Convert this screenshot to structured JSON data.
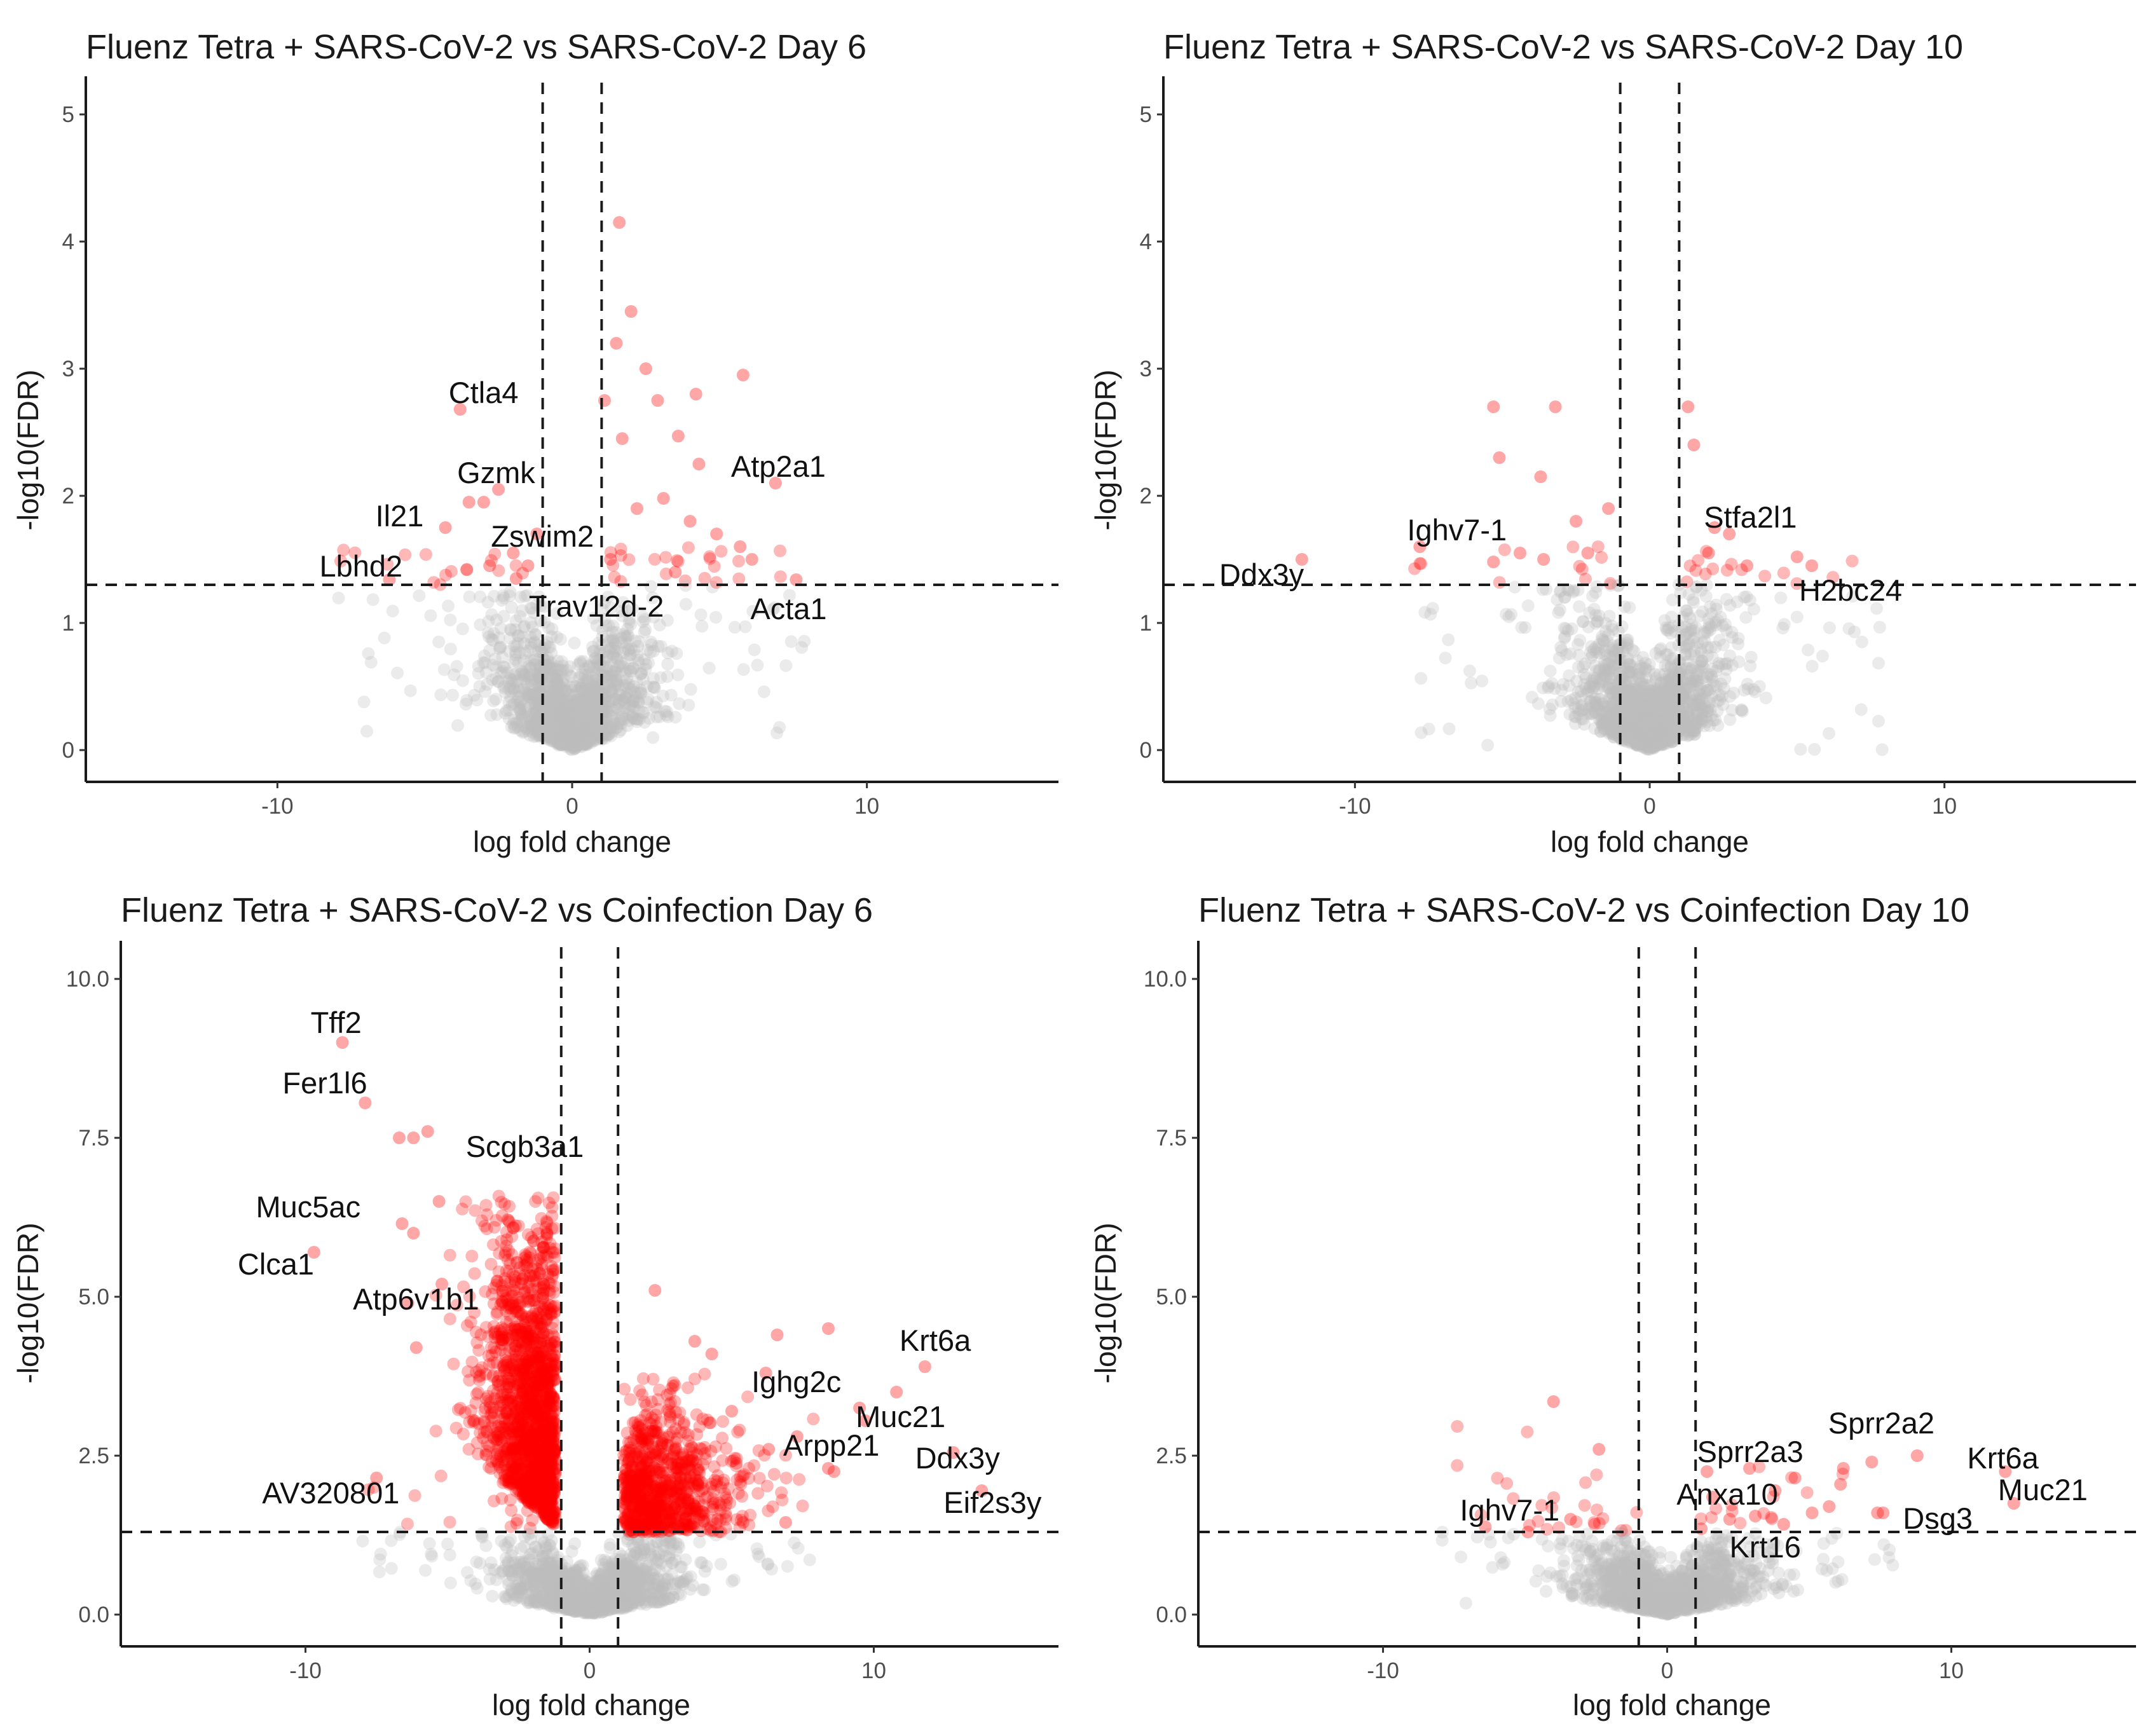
{
  "colors": {
    "significant": "#ff0000",
    "not_significant": "#bdbdbd",
    "threshold_line": "#1a1a1a"
  },
  "chart_data": [
    {
      "type": "scatter",
      "title": "Fluenz Tetra + SARS-CoV-2 vs SARS-CoV-2 Day 6",
      "xlabel": "log fold change",
      "ylabel": "-log10(FDR)",
      "xlim": [
        -16.5,
        16.5
      ],
      "ylim": [
        -0.25,
        5.25
      ],
      "x_ticks": [
        -10,
        0,
        10
      ],
      "y_ticks": [
        0,
        1,
        2,
        3,
        4,
        5
      ],
      "y_tick_labels": [
        "0",
        "1",
        "2",
        "3",
        "4",
        "5"
      ],
      "thresholds": {
        "logfc": [
          -1,
          1
        ],
        "neg_log10_fdr": 1.3
      },
      "grid": false,
      "labeled_genes": [
        {
          "gene": "Ctla4",
          "x": -3.8,
          "y": 2.68
        },
        {
          "gene": "Gzmk",
          "x": -2.5,
          "y": 2.05
        },
        {
          "gene": "Il21",
          "x": -4.3,
          "y": 1.75
        },
        {
          "gene": "Zswim2",
          "x": -2.0,
          "y": 1.55
        },
        {
          "gene": "Lbhd2",
          "x": -6.2,
          "y": 1.34
        },
        {
          "gene": "Trav12d-2",
          "x": -1.9,
          "y": 1.35
        },
        {
          "gene": "Atp2a1",
          "x": 6.9,
          "y": 2.1
        },
        {
          "gene": "Acta1",
          "x": 7.6,
          "y": 1.34
        }
      ],
      "highlighted_points": [
        {
          "x": 1.6,
          "y": 4.15
        },
        {
          "x": 2.0,
          "y": 3.45
        },
        {
          "x": 1.5,
          "y": 3.2
        },
        {
          "x": 2.5,
          "y": 3.0
        },
        {
          "x": 5.8,
          "y": 2.95
        },
        {
          "x": 4.2,
          "y": 2.8
        },
        {
          "x": 2.9,
          "y": 2.75
        },
        {
          "x": 1.1,
          "y": 2.75
        },
        {
          "x": 3.6,
          "y": 2.47
        },
        {
          "x": 4.3,
          "y": 2.25
        },
        {
          "x": 1.7,
          "y": 2.45
        },
        {
          "x": 3.1,
          "y": 1.98
        },
        {
          "x": 2.2,
          "y": 1.9
        },
        {
          "x": 4.0,
          "y": 1.8
        },
        {
          "x": 4.9,
          "y": 1.7
        },
        {
          "x": 5.7,
          "y": 1.6
        },
        {
          "x": 1.3,
          "y": 1.5
        },
        {
          "x": 3.5,
          "y": 1.4
        },
        {
          "x": 6.1,
          "y": 1.5
        },
        {
          "x": -1.2,
          "y": 1.7
        },
        {
          "x": -1.5,
          "y": 1.45
        },
        {
          "x": -2.8,
          "y": 1.45
        },
        {
          "x": -3.5,
          "y": 1.95
        },
        {
          "x": -3.0,
          "y": 1.95
        }
      ]
    },
    {
      "type": "scatter",
      "title": "Fluenz Tetra + SARS-CoV-2 vs SARS-CoV-2 Day 10",
      "xlabel": "log fold change",
      "ylabel": "-log10(FDR)",
      "xlim": [
        -16.5,
        16.5
      ],
      "ylim": [
        -0.25,
        5.25
      ],
      "x_ticks": [
        -10,
        0,
        10
      ],
      "y_ticks": [
        0,
        1,
        2,
        3,
        4,
        5
      ],
      "y_tick_labels": [
        "0",
        "1",
        "2",
        "3",
        "4",
        "5"
      ],
      "thresholds": {
        "logfc": [
          -1,
          1
        ],
        "neg_log10_fdr": 1.3
      },
      "grid": false,
      "labeled_genes": [
        {
          "gene": "Ighv7-1",
          "x": -7.8,
          "y": 1.6
        },
        {
          "gene": "Ddx3y",
          "x": -11.8,
          "y": 1.5
        },
        {
          "gene": "Stfa2l1",
          "x": 2.7,
          "y": 1.7
        },
        {
          "gene": "H2bc24",
          "x": 5.5,
          "y": 1.45
        }
      ],
      "highlighted_points": [
        {
          "x": -5.3,
          "y": 2.7
        },
        {
          "x": -3.2,
          "y": 2.7
        },
        {
          "x": -5.1,
          "y": 2.3
        },
        {
          "x": -3.7,
          "y": 2.15
        },
        {
          "x": -1.4,
          "y": 1.9
        },
        {
          "x": -2.5,
          "y": 1.8
        },
        {
          "x": -4.4,
          "y": 1.55
        },
        {
          "x": -5.3,
          "y": 1.48
        },
        {
          "x": -3.6,
          "y": 1.5
        },
        {
          "x": -2.1,
          "y": 1.55
        },
        {
          "x": 1.3,
          "y": 2.7
        },
        {
          "x": 1.5,
          "y": 2.4
        },
        {
          "x": 2.2,
          "y": 1.75
        },
        {
          "x": 3.3,
          "y": 1.45
        },
        {
          "x": 2.0,
          "y": 1.55
        },
        {
          "x": 5.0,
          "y": 1.52
        }
      ]
    },
    {
      "type": "scatter",
      "title": "Fluenz Tetra + SARS-CoV-2 vs Coinfection Day 6",
      "xlabel": "log fold change",
      "ylabel": "-log10(FDR)",
      "xlim": [
        -16.5,
        16.5
      ],
      "ylim": [
        -0.5,
        10.5
      ],
      "x_ticks": [
        -10,
        0,
        10
      ],
      "y_ticks": [
        0,
        2.5,
        5,
        7.5,
        10
      ],
      "y_tick_labels": [
        "0.0",
        "2.5",
        "5.0",
        "7.5",
        "10.0"
      ],
      "thresholds": {
        "logfc": [
          -1,
          1
        ],
        "neg_log10_fdr": 1.3
      },
      "grid": false,
      "labeled_genes": [
        {
          "gene": "Tff2",
          "x": -8.7,
          "y": 9.0
        },
        {
          "gene": "Fer1l6",
          "x": -7.9,
          "y": 8.05
        },
        {
          "gene": "Scgb3a1",
          "x": -5.7,
          "y": 7.6
        },
        {
          "gene": "Muc5ac",
          "x": -6.6,
          "y": 6.15
        },
        {
          "gene": "Clca1",
          "x": -9.7,
          "y": 5.7
        },
        {
          "gene": "Atp6v1b1",
          "x": -5.2,
          "y": 5.2
        },
        {
          "gene": "AV320801",
          "x": -7.5,
          "y": 2.15
        },
        {
          "gene": "Ighg2c",
          "x": 9.5,
          "y": 3.25
        },
        {
          "gene": "Muc21",
          "x": 9.7,
          "y": 3.05
        },
        {
          "gene": "Krt6a",
          "x": 11.8,
          "y": 3.9
        },
        {
          "gene": "Ddx3y",
          "x": 12.8,
          "y": 2.55
        },
        {
          "gene": "Arpp21",
          "x": 8.6,
          "y": 2.25
        },
        {
          "gene": "Eif2s3y",
          "x": 13.8,
          "y": 1.95
        }
      ],
      "highlighted_points": [
        {
          "x": -6.7,
          "y": 7.5
        },
        {
          "x": -6.2,
          "y": 7.5
        },
        {
          "x": -5.3,
          "y": 6.5
        },
        {
          "x": -6.2,
          "y": 6.0
        },
        {
          "x": -6.4,
          "y": 4.9
        },
        {
          "x": -6.1,
          "y": 4.2
        },
        {
          "x": 2.3,
          "y": 5.1
        },
        {
          "x": 3.7,
          "y": 4.3
        },
        {
          "x": 4.3,
          "y": 4.1
        },
        {
          "x": 6.6,
          "y": 4.4
        },
        {
          "x": 8.4,
          "y": 4.5
        },
        {
          "x": 10.8,
          "y": 3.5
        },
        {
          "x": 6.2,
          "y": 3.8
        },
        {
          "x": 5.0,
          "y": 3.2
        },
        {
          "x": 6.3,
          "y": 2.6
        },
        {
          "x": 7.3,
          "y": 2.8
        },
        {
          "x": 4.5,
          "y": 1.5
        },
        {
          "x": 6.9,
          "y": 1.45
        },
        {
          "x": 5.4,
          "y": 1.45
        },
        {
          "x": 8.4,
          "y": 2.3
        }
      ]
    },
    {
      "type": "scatter",
      "title": "Fluenz Tetra + SARS-CoV-2 vs Coinfection Day 10",
      "xlabel": "log fold change",
      "ylabel": "-log10(FDR)",
      "xlim": [
        -16.5,
        16.5
      ],
      "ylim": [
        -0.5,
        10.5
      ],
      "x_ticks": [
        -10,
        0,
        10
      ],
      "y_ticks": [
        0,
        2.5,
        5,
        7.5,
        10
      ],
      "y_tick_labels": [
        "0.0",
        "2.5",
        "5.0",
        "7.5",
        "10.0"
      ],
      "thresholds": {
        "logfc": [
          -1,
          1
        ],
        "neg_log10_fdr": 1.3
      },
      "grid": false,
      "labeled_genes": [
        {
          "gene": "Ighv7-1",
          "x": -6.4,
          "y": 1.38
        },
        {
          "gene": "Sprr2a2",
          "x": 8.8,
          "y": 2.5
        },
        {
          "gene": "Krt6a",
          "x": 11.9,
          "y": 2.25
        },
        {
          "gene": "Sprr2a3",
          "x": 6.2,
          "y": 2.3
        },
        {
          "gene": "Anxa10",
          "x": 3.8,
          "y": 1.95
        },
        {
          "gene": "Dsg3",
          "x": 7.4,
          "y": 1.6
        },
        {
          "gene": "Muc21",
          "x": 12.2,
          "y": 1.75
        },
        {
          "gene": "Krt16",
          "x": 5.1,
          "y": 1.6
        }
      ],
      "highlighted_points": [
        {
          "x": -4.0,
          "y": 3.35
        },
        {
          "x": -2.4,
          "y": 2.6
        },
        {
          "x": -4.9,
          "y": 1.3
        },
        {
          "x": -3.4,
          "y": 1.5
        },
        {
          "x": 1.4,
          "y": 2.25
        },
        {
          "x": 2.9,
          "y": 2.3
        },
        {
          "x": 4.5,
          "y": 2.15
        },
        {
          "x": 7.2,
          "y": 2.4
        },
        {
          "x": 7.6,
          "y": 1.6
        },
        {
          "x": 5.7,
          "y": 1.7
        },
        {
          "x": 1.6,
          "y": 1.85
        },
        {
          "x": 3.1,
          "y": 1.55
        },
        {
          "x": 4.1,
          "y": 1.42
        },
        {
          "x": 2.2,
          "y": 1.5
        },
        {
          "x": 1.2,
          "y": 1.35
        },
        {
          "x": 6.1,
          "y": 2.05
        }
      ]
    }
  ]
}
